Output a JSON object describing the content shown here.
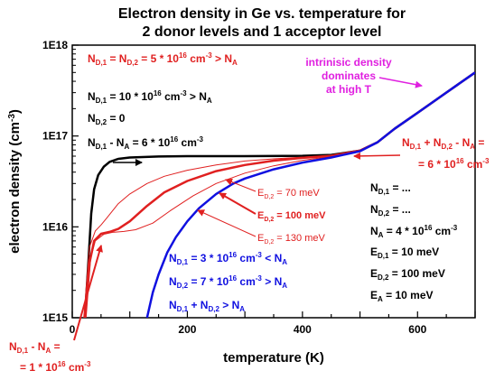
{
  "chart_data": {
    "type": "line",
    "title": "Electron density in Ge vs. temperature for",
    "subtitle": "2 donor levels and 1 acceptor level",
    "xlabel": "temperature (K)",
    "ylabel": "electron density (cm",
    "ylabel_sup": "-3",
    "ylabel_close": ")",
    "xlim": [
      0,
      700
    ],
    "ylim": [
      1000000000000000.0,
      1e+18
    ],
    "yscale": "log",
    "xticks": [
      0,
      200,
      400,
      600
    ],
    "yticks": [
      {
        "value": 1000000000000000.0,
        "label": "1E15"
      },
      {
        "value": 1e+16,
        "label": "1E16"
      },
      {
        "value": 1e+17,
        "label": "1E17"
      },
      {
        "value": 1e+18,
        "label": "1E18"
      }
    ],
    "series": [
      {
        "key": "single_donor",
        "color": "#000000",
        "width": 2.5,
        "x": [
          22,
          28,
          33,
          38,
          45,
          55,
          65,
          80,
          100,
          150,
          200,
          300,
          400,
          450,
          500,
          530,
          560,
          600,
          650,
          700
        ],
        "y": [
          1000000000000000.0,
          4000000000000000.0,
          1.4e+16,
          2.6e+16,
          3.7e+16,
          4.6e+16,
          5.2e+16,
          5.6e+16,
          5.8e+16,
          5.95e+16,
          6e+16,
          6e+16,
          6.05e+16,
          6.2e+16,
          6.9e+16,
          8.5e+16,
          1.2e+17,
          1.8e+17,
          3e+17,
          5e+17
        ]
      },
      {
        "key": "ed2_70",
        "color": "#e02020",
        "width": 1,
        "x": [
          20,
          30,
          40,
          50,
          60,
          80,
          100,
          130,
          160,
          200,
          250,
          300,
          350,
          400,
          450,
          500,
          530,
          560,
          600,
          650,
          700
        ],
        "y": [
          1000000000000000.0,
          6000000000000000.0,
          9000000000000000.0,
          1.05e+16,
          1.25e+16,
          1.8e+16,
          2.3e+16,
          3e+16,
          3.6e+16,
          4.2e+16,
          4.8e+16,
          5.3e+16,
          5.6e+16,
          5.85e+16,
          6.1e+16,
          6.9e+16,
          8.5e+16,
          1.2e+17,
          1.8e+17,
          3e+17,
          5e+17
        ]
      },
      {
        "key": "ed2_100",
        "color": "#e02020",
        "width": 2.5,
        "x": [
          22,
          30,
          38,
          50,
          65,
          80,
          100,
          130,
          160,
          200,
          250,
          300,
          350,
          400,
          450,
          500,
          530,
          560,
          600,
          650,
          700
        ],
        "y": [
          1000000000000000.0,
          4000000000000000.0,
          7000000000000000.0,
          8400000000000000.0,
          8800000000000000.0,
          9500000000000000.0,
          1.15e+16,
          1.7e+16,
          2.4e+16,
          3.2e+16,
          4.1e+16,
          4.8e+16,
          5.35e+16,
          5.75e+16,
          6.05e+16,
          6.9e+16,
          8.5e+16,
          1.2e+17,
          1.8e+17,
          3e+17,
          5e+17
        ]
      },
      {
        "key": "ed2_130",
        "color": "#e02020",
        "width": 1,
        "x": [
          24,
          32,
          40,
          55,
          70,
          90,
          110,
          140,
          170,
          210,
          250,
          300,
          350,
          400,
          450,
          500,
          530,
          560,
          600,
          650,
          700
        ],
        "y": [
          1000000000000000.0,
          4500000000000000.0,
          7000000000000000.0,
          8300000000000000.0,
          8700000000000000.0,
          8900000000000000.0,
          9300000000000000.0,
          1.1e+16,
          1.5e+16,
          2.2e+16,
          3e+16,
          3.9e+16,
          4.7e+16,
          5.4e+16,
          5.95e+16,
          6.9e+16,
          8.5e+16,
          1.2e+17,
          1.8e+17,
          3e+17,
          5e+17
        ]
      },
      {
        "key": "compensated",
        "color": "#1010e0",
        "width": 2.5,
        "x": [
          130,
          140,
          150,
          165,
          180,
          200,
          220,
          250,
          280,
          300,
          350,
          400,
          450,
          500,
          530,
          560,
          600,
          650,
          700
        ],
        "y": [
          1000000000000000.0,
          1900000000000000.0,
          3000000000000000.0,
          5200000000000000.0,
          7700000000000000.0,
          1.15e+16,
          1.6e+16,
          2.3e+16,
          3e+16,
          3.4e+16,
          4.3e+16,
          5.1e+16,
          5.8e+16,
          6.8e+16,
          8.5e+16,
          1.2e+17,
          1.8e+17,
          3e+17,
          5e+17
        ]
      }
    ]
  },
  "annotations": {
    "nd_equal_a": "N",
    "nd_equal_b": "D,1",
    "nd_equal_c": " = N",
    "nd_equal_d": "D,2",
    "nd_equal_e": " = 5 * 10",
    "nd_equal_f": "16",
    "nd_equal_g": " cm",
    "nd_equal_h": "-3",
    "nd_equal_i": "  >  N",
    "nd_equal_j": "A",
    "single_line1_a": "N",
    "single_line1_b": "D,1",
    "single_line1_c": " = 10 * 10",
    "single_line1_d": "16",
    "single_line1_e": " cm",
    "single_line1_f": "-3",
    "single_line1_g": "  >  N",
    "single_line1_h": "A",
    "single_line2_a": "N",
    "single_line2_b": "D,2",
    "single_line2_c": " = 0",
    "single_line3_a": "N",
    "single_line3_b": "D,1",
    "single_line3_c": " - N",
    "single_line3_d": "A",
    "single_line3_e": " = 6 * 10",
    "single_line3_f": "16",
    "single_line3_g": " cm",
    "single_line3_h": "-3",
    "intrinsic_1": "intrinisic density",
    "intrinsic_2": "dominates",
    "intrinsic_3": "at high T",
    "sum_line1_a": "N",
    "sum_line1_b": "D,1",
    "sum_line1_c": " + N",
    "sum_line1_d": "D,2",
    "sum_line1_e": " - N",
    "sum_line1_f": "A",
    "sum_line1_g": " =",
    "sum_line2_a": "= 6 * 10",
    "sum_line2_b": "16",
    "sum_line2_c": " cm",
    "sum_line2_d": "-3",
    "ed70_a": "E",
    "ed70_b": "D,2",
    "ed70_c": " =   70 meV",
    "ed100_a": "E",
    "ed100_b": "D,2",
    "ed100_c": " = 100 meV",
    "ed130_a": "E",
    "ed130_b": "D,2",
    "ed130_c": " = 130 meV",
    "gen_nd1_a": "N",
    "gen_nd1_b": "D,1",
    "gen_nd1_c": " = ...",
    "gen_nd2_a": "N",
    "gen_nd2_b": "D,2",
    "gen_nd2_c": " = ...",
    "gen_na_a": "N",
    "gen_na_b": "A",
    "gen_na_c": " = 4 * 10",
    "gen_na_d": "16",
    "gen_na_e": " cm",
    "gen_na_f": "-3",
    "gen_ed1_a": "E",
    "gen_ed1_b": "D,1",
    "gen_ed1_c": " =   10 meV",
    "gen_ed2_a": "E",
    "gen_ed2_b": "D,2",
    "gen_ed2_c": " = 100 meV",
    "gen_ea_a": "E",
    "gen_ea_b": "A",
    "gen_ea_c": "   =   10 meV",
    "comp1_a": "N",
    "comp1_b": "D,1",
    "comp1_c": " = 3 * 10",
    "comp1_d": "16",
    "comp1_e": " cm",
    "comp1_f": "-3",
    "comp1_g": "  <  N",
    "comp1_h": "A",
    "comp2_a": "N",
    "comp2_b": "D,2",
    "comp2_c": " = 7 * 10",
    "comp2_d": "16",
    "comp2_e": " cm",
    "comp2_f": "-3",
    "comp2_g": "  >  N",
    "comp2_h": "A",
    "comp3_a": "N",
    "comp3_b": "D,1",
    "comp3_c": " + N",
    "comp3_d": "D,2",
    "comp3_e": "  >  N",
    "comp3_f": "A",
    "low_line1_a": "N",
    "low_line1_b": "D,1",
    "low_line1_c": " - N",
    "low_line1_d": "A",
    "low_line1_e": " =",
    "low_line2_a": "= 1 * 10",
    "low_line2_b": "16",
    "low_line2_c": " cm",
    "low_line2_d": "-3"
  },
  "colors": {
    "red": "#e02020",
    "blue": "#1010e0",
    "magenta": "#e020e0",
    "black": "#000000"
  }
}
